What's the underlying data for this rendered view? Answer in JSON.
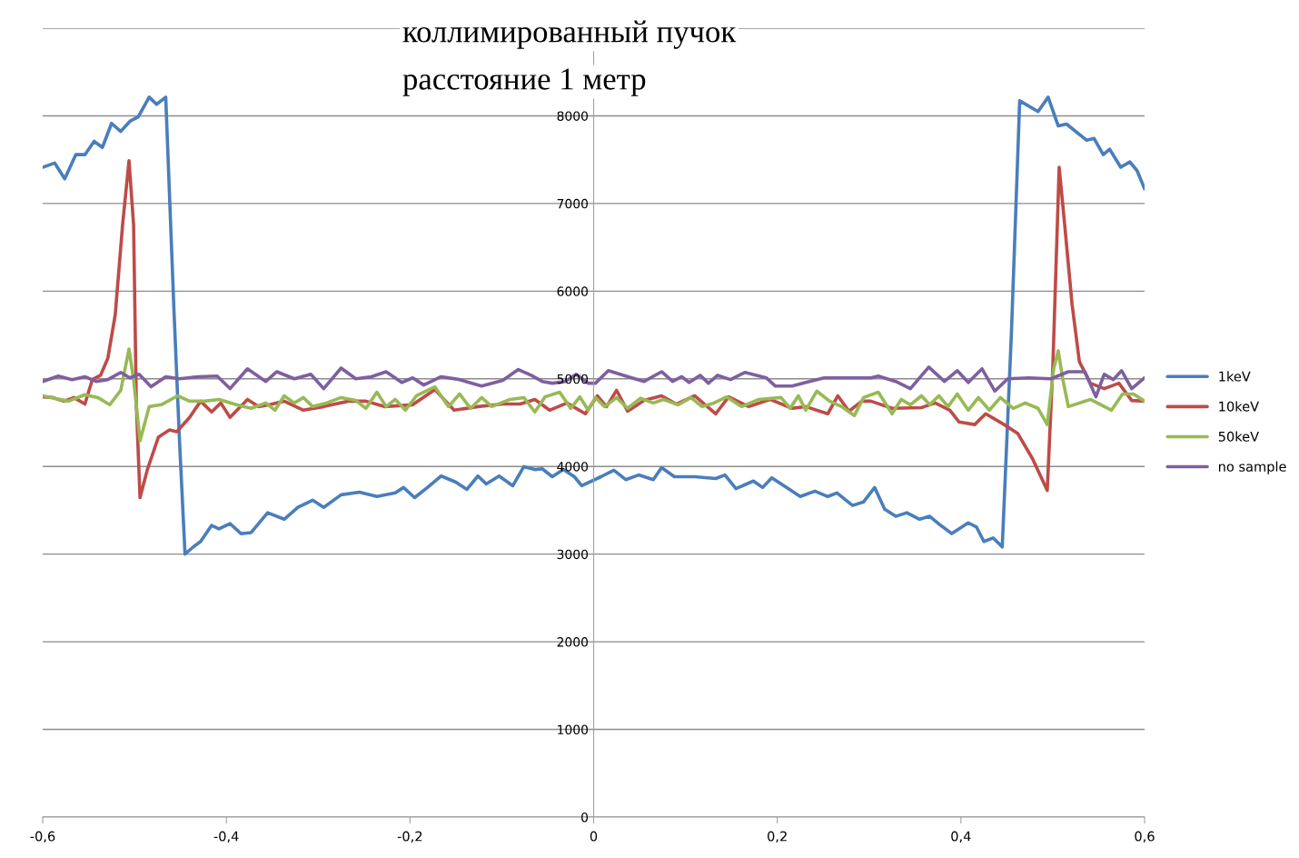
{
  "chart_data": {
    "type": "line",
    "title": "коллимированный пучок",
    "subtitle": "расстояние 1 метр",
    "xlim": [
      -0.6,
      0.6
    ],
    "ylim": [
      0,
      9000
    ],
    "xticks": [
      {
        "value": -0.6,
        "label": "-0,6"
      },
      {
        "value": -0.4,
        "label": "-0,4"
      },
      {
        "value": -0.2,
        "label": "-0,2"
      },
      0,
      {
        "value": 0.2,
        "label": "0,2"
      },
      {
        "value": 0.4,
        "label": "0,4"
      },
      {
        "value": 0.6,
        "label": "0,6"
      }
    ],
    "yticks": [
      0,
      1000,
      2000,
      3000,
      4000,
      5000,
      6000,
      7000,
      8000,
      {
        "value": 9000,
        "label": null
      }
    ],
    "grid": "y",
    "legend": "right",
    "marker": "none",
    "line_style": "solid",
    "series": [
      {
        "name": "1keV",
        "color": "#4a7ebb",
        "x": [
          -0.6,
          -0.587,
          -0.576,
          -0.564,
          -0.554,
          -0.544,
          -0.535,
          -0.525,
          -0.515,
          -0.505,
          -0.496,
          -0.484,
          -0.476,
          -0.466,
          -0.457,
          -0.451,
          -0.445,
          -0.436,
          -0.428,
          -0.416,
          -0.408,
          -0.396,
          -0.384,
          -0.373,
          -0.355,
          -0.337,
          -0.322,
          -0.306,
          -0.294,
          -0.275,
          -0.255,
          -0.236,
          -0.216,
          -0.207,
          -0.195,
          -0.181,
          -0.166,
          -0.15,
          -0.138,
          -0.126,
          -0.117,
          -0.103,
          -0.088,
          -0.076,
          -0.064,
          -0.056,
          -0.045,
          -0.033,
          -0.021,
          -0.013,
          0.008,
          0.022,
          0.035,
          0.049,
          0.065,
          0.074,
          0.088,
          0.11,
          0.133,
          0.143,
          0.155,
          0.174,
          0.184,
          0.194,
          0.21,
          0.225,
          0.241,
          0.255,
          0.265,
          0.282,
          0.294,
          0.306,
          0.317,
          0.329,
          0.341,
          0.355,
          0.366,
          0.378,
          0.39,
          0.408,
          0.417,
          0.425,
          0.435,
          0.445,
          0.455,
          0.464,
          0.484,
          0.495,
          0.506,
          0.515,
          0.537,
          0.545,
          0.555,
          0.562,
          0.574,
          0.584,
          0.592,
          0.6
        ],
        "values": [
          7413,
          7462,
          7282,
          7557,
          7557,
          7709,
          7639,
          7914,
          7823,
          7938,
          7988,
          8213,
          8131,
          8213,
          5771,
          4293,
          3000,
          3082,
          3144,
          3328,
          3287,
          3349,
          3234,
          3246,
          3472,
          3398,
          3534,
          3616,
          3534,
          3677,
          3706,
          3657,
          3698,
          3760,
          3645,
          3760,
          3891,
          3821,
          3739,
          3891,
          3801,
          3891,
          3780,
          3998,
          3965,
          3974,
          3883,
          3965,
          3883,
          3780,
          3883,
          3957,
          3850,
          3903,
          3850,
          3986,
          3883,
          3883,
          3862,
          3903,
          3747,
          3834,
          3760,
          3871,
          3760,
          3657,
          3718,
          3657,
          3698,
          3555,
          3596,
          3760,
          3513,
          3431,
          3472,
          3398,
          3431,
          3328,
          3234,
          3357,
          3308,
          3144,
          3185,
          3082,
          5525,
          8172,
          8049,
          8213,
          7885,
          7906,
          7721,
          7742,
          7557,
          7619,
          7413,
          7475,
          7372,
          7167
        ]
      },
      {
        "name": "10keV",
        "color": "#be4b48",
        "x": [
          -0.6,
          -0.589,
          -0.577,
          -0.566,
          -0.554,
          -0.546,
          -0.537,
          -0.529,
          -0.521,
          -0.513,
          -0.506,
          -0.501,
          -0.498,
          -0.494,
          -0.486,
          -0.474,
          -0.462,
          -0.454,
          -0.44,
          -0.428,
          -0.416,
          -0.406,
          -0.396,
          -0.377,
          -0.365,
          -0.353,
          -0.337,
          -0.316,
          -0.294,
          -0.267,
          -0.248,
          -0.228,
          -0.197,
          -0.173,
          -0.152,
          -0.126,
          -0.099,
          -0.08,
          -0.064,
          -0.048,
          -0.029,
          -0.009,
          0.004,
          0.014,
          0.025,
          0.037,
          0.055,
          0.074,
          0.09,
          0.11,
          0.133,
          0.147,
          0.169,
          0.192,
          0.216,
          0.231,
          0.255,
          0.266,
          0.278,
          0.292,
          0.302,
          0.325,
          0.357,
          0.372,
          0.388,
          0.398,
          0.415,
          0.427,
          0.447,
          0.462,
          0.478,
          0.494,
          0.5,
          0.507,
          0.513,
          0.521,
          0.529,
          0.541,
          0.556,
          0.572,
          0.586,
          0.6
        ],
        "values": [
          4794,
          4786,
          4745,
          4786,
          4712,
          4991,
          5040,
          5237,
          5730,
          6756,
          7487,
          6756,
          4704,
          3644,
          3965,
          4334,
          4416,
          4396,
          4560,
          4745,
          4622,
          4724,
          4560,
          4765,
          4683,
          4704,
          4745,
          4642,
          4683,
          4745,
          4745,
          4683,
          4704,
          4877,
          4642,
          4683,
          4712,
          4712,
          4765,
          4642,
          4724,
          4601,
          4806,
          4683,
          4868,
          4630,
          4753,
          4806,
          4712,
          4806,
          4601,
          4794,
          4683,
          4765,
          4663,
          4683,
          4601,
          4806,
          4630,
          4745,
          4745,
          4663,
          4671,
          4724,
          4642,
          4507,
          4478,
          4601,
          4478,
          4375,
          4088,
          3727,
          5114,
          7413,
          6756,
          5853,
          5196,
          4950,
          4888,
          4950,
          4753,
          4745
        ]
      },
      {
        "name": "50keV",
        "color": "#98b954",
        "x": [
          -0.6,
          -0.587,
          -0.572,
          -0.554,
          -0.54,
          -0.527,
          -0.515,
          -0.506,
          -0.501,
          -0.494,
          -0.484,
          -0.471,
          -0.453,
          -0.44,
          -0.424,
          -0.408,
          -0.389,
          -0.373,
          -0.357,
          -0.347,
          -0.337,
          -0.326,
          -0.316,
          -0.306,
          -0.291,
          -0.275,
          -0.259,
          -0.248,
          -0.236,
          -0.226,
          -0.216,
          -0.205,
          -0.193,
          -0.173,
          -0.158,
          -0.146,
          -0.134,
          -0.122,
          -0.111,
          -0.091,
          -0.076,
          -0.064,
          -0.053,
          -0.037,
          -0.025,
          -0.015,
          -0.006,
          0.002,
          0.012,
          0.025,
          0.037,
          0.051,
          0.065,
          0.076,
          0.092,
          0.106,
          0.118,
          0.131,
          0.145,
          0.161,
          0.18,
          0.204,
          0.214,
          0.223,
          0.231,
          0.243,
          0.257,
          0.27,
          0.284,
          0.294,
          0.31,
          0.325,
          0.335,
          0.345,
          0.357,
          0.366,
          0.376,
          0.386,
          0.396,
          0.408,
          0.419,
          0.431,
          0.443,
          0.457,
          0.47,
          0.484,
          0.494,
          0.501,
          0.506,
          0.511,
          0.517,
          0.541,
          0.564,
          0.576,
          0.588,
          0.6
        ],
        "values": [
          4806,
          4778,
          4745,
          4819,
          4786,
          4704,
          4868,
          5340,
          4991,
          4293,
          4683,
          4704,
          4806,
          4745,
          4745,
          4765,
          4704,
          4663,
          4724,
          4642,
          4806,
          4724,
          4786,
          4683,
          4724,
          4786,
          4753,
          4663,
          4847,
          4683,
          4765,
          4642,
          4806,
          4909,
          4683,
          4827,
          4663,
          4786,
          4683,
          4765,
          4786,
          4622,
          4794,
          4847,
          4663,
          4794,
          4642,
          4786,
          4683,
          4786,
          4663,
          4778,
          4724,
          4765,
          4704,
          4786,
          4683,
          4724,
          4794,
          4683,
          4765,
          4786,
          4663,
          4806,
          4642,
          4860,
          4745,
          4683,
          4581,
          4786,
          4847,
          4601,
          4765,
          4704,
          4806,
          4704,
          4806,
          4683,
          4827,
          4642,
          4786,
          4642,
          4786,
          4663,
          4724,
          4663,
          4478,
          5114,
          5319,
          4991,
          4683,
          4765,
          4642,
          4827,
          4827,
          4745
        ]
      },
      {
        "name": "no sample",
        "color": "#7d60a0",
        "x": [
          -0.6,
          -0.583,
          -0.568,
          -0.554,
          -0.542,
          -0.529,
          -0.515,
          -0.505,
          -0.495,
          -0.482,
          -0.466,
          -0.451,
          -0.431,
          -0.41,
          -0.396,
          -0.377,
          -0.357,
          -0.345,
          -0.326,
          -0.308,
          -0.294,
          -0.275,
          -0.259,
          -0.242,
          -0.226,
          -0.209,
          -0.197,
          -0.185,
          -0.166,
          -0.146,
          -0.122,
          -0.099,
          -0.082,
          -0.068,
          -0.056,
          -0.045,
          -0.031,
          -0.019,
          -0.006,
          0.002,
          0.016,
          0.035,
          0.055,
          0.074,
          0.086,
          0.096,
          0.104,
          0.116,
          0.125,
          0.135,
          0.149,
          0.165,
          0.188,
          0.198,
          0.216,
          0.235,
          0.251,
          0.302,
          0.31,
          0.329,
          0.345,
          0.365,
          0.382,
          0.396,
          0.408,
          0.423,
          0.437,
          0.451,
          0.474,
          0.498,
          0.517,
          0.535,
          0.547,
          0.556,
          0.566,
          0.575,
          0.586,
          0.6
        ],
        "values": [
          4970,
          5032,
          4991,
          5024,
          4970,
          4991,
          5073,
          5011,
          5052,
          4909,
          5024,
          5000,
          5024,
          5032,
          4888,
          5114,
          4970,
          5081,
          5000,
          5052,
          4888,
          5122,
          5000,
          5024,
          5081,
          4958,
          5011,
          4929,
          5024,
          4991,
          4917,
          4983,
          5106,
          5040,
          4970,
          4950,
          4970,
          5052,
          4950,
          4950,
          5093,
          5032,
          4970,
          5081,
          4970,
          5024,
          4958,
          5040,
          4950,
          5040,
          4991,
          5073,
          5011,
          4917,
          4917,
          4970,
          5011,
          5011,
          5032,
          4970,
          4888,
          5134,
          4970,
          5093,
          4958,
          5114,
          4860,
          5000,
          5011,
          5000,
          5081,
          5081,
          4794,
          5052,
          4991,
          5093,
          4888,
          5011
        ]
      }
    ]
  }
}
